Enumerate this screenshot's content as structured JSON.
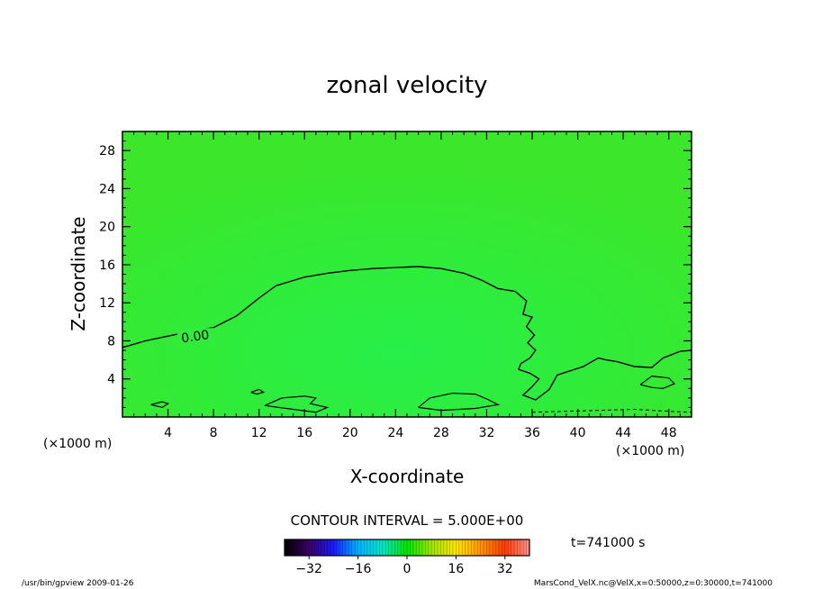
{
  "chart_data": {
    "type": "heatmap",
    "title": "zonal velocity",
    "xlabel": "X-coordinate",
    "ylabel": "Z-coordinate",
    "x_unit": "(×1000 m)",
    "y_unit": "(×1000 m)",
    "xlim": [
      0,
      50
    ],
    "ylim": [
      0,
      30
    ],
    "x_ticks": [
      "4",
      "8",
      "12",
      "16",
      "20",
      "24",
      "28",
      "32",
      "36",
      "40",
      "44",
      "48"
    ],
    "y_ticks": [
      "4",
      "8",
      "12",
      "16",
      "20",
      "24",
      "28"
    ],
    "grid": false,
    "contour_interval_text": "CONTOUR INTERVAL = 5.000E+00",
    "time_text": "t=741000 s",
    "colorbar": {
      "min": -40,
      "max": 40,
      "ticks": [
        "−32",
        "−16",
        "0",
        "16",
        "32"
      ],
      "colors": [
        "#000000",
        "#3a0066",
        "#1a1aff",
        "#00b4ff",
        "#00e6c8",
        "#00e600",
        "#a0e600",
        "#ffe600",
        "#ff9600",
        "#ff3c00",
        "#ff9090"
      ]
    },
    "field_color": "#33ee33",
    "contour_label": "0.00",
    "zero_contour": [
      [
        0,
        7.3
      ],
      [
        2,
        8.0
      ],
      [
        4,
        8.5
      ],
      [
        6,
        9.0
      ],
      [
        8,
        9.4
      ],
      [
        10,
        10.6
      ],
      [
        12,
        12.5
      ],
      [
        13.5,
        13.8
      ],
      [
        16,
        14.7
      ],
      [
        18,
        15.1
      ],
      [
        20,
        15.4
      ],
      [
        22,
        15.6
      ],
      [
        24,
        15.7
      ],
      [
        26,
        15.8
      ],
      [
        28,
        15.6
      ],
      [
        30,
        15.1
      ],
      [
        31.5,
        14.4
      ],
      [
        33,
        13.5
      ],
      [
        34.5,
        13.2
      ],
      [
        35.5,
        12.2
      ],
      [
        35.2,
        10.8
      ],
      [
        36,
        10.5
      ],
      [
        35.5,
        9.5
      ],
      [
        36.2,
        8.6
      ],
      [
        35.6,
        7.8
      ],
      [
        36.3,
        7.0
      ],
      [
        35.8,
        6.2
      ],
      [
        35,
        5.6
      ],
      [
        34.8,
        5.0
      ],
      [
        35.8,
        4.6
      ],
      [
        36.6,
        4.0
      ],
      [
        36.0,
        3.2
      ],
      [
        35.2,
        2.3
      ],
      [
        36.3,
        1.8
      ],
      [
        37.5,
        2.9
      ],
      [
        38.2,
        4.4
      ],
      [
        39.2,
        4.8
      ],
      [
        40.5,
        5.3
      ],
      [
        41.8,
        6.2
      ],
      [
        42.5,
        6.0
      ],
      [
        43.5,
        5.8
      ],
      [
        45,
        5.3
      ],
      [
        46.5,
        5.2
      ],
      [
        47.5,
        6.2
      ],
      [
        49,
        6.9
      ],
      [
        50,
        7.0
      ]
    ],
    "surface_contours": [
      [
        [
          12.5,
          1.2
        ],
        [
          14,
          2.0
        ],
        [
          16,
          2.2
        ],
        [
          17,
          2.0
        ],
        [
          16.5,
          1.4
        ],
        [
          18,
          1.0
        ],
        [
          17,
          0.5
        ],
        [
          15,
          0.8
        ],
        [
          12.5,
          1.2
        ]
      ],
      [
        [
          26,
          1.0
        ],
        [
          27,
          2.0
        ],
        [
          29,
          2.5
        ],
        [
          31,
          2.4
        ],
        [
          32,
          1.9
        ],
        [
          33,
          1.3
        ],
        [
          31,
          0.9
        ],
        [
          28,
          0.7
        ],
        [
          26,
          1.0
        ]
      ],
      [
        [
          2.5,
          1.3
        ],
        [
          3.5,
          1.6
        ],
        [
          4,
          1.4
        ],
        [
          3.5,
          1.0
        ],
        [
          2.5,
          1.3
        ]
      ],
      [
        [
          45.5,
          3.4
        ],
        [
          46.5,
          4.3
        ],
        [
          48,
          4.1
        ],
        [
          48.5,
          3.5
        ],
        [
          47.5,
          3.0
        ],
        [
          46.5,
          3.1
        ],
        [
          45.5,
          3.4
        ]
      ],
      [
        [
          11.3,
          2.6
        ],
        [
          12,
          2.9
        ],
        [
          12.4,
          2.6
        ],
        [
          11.8,
          2.4
        ],
        [
          11.3,
          2.6
        ]
      ]
    ],
    "dashed_contour": [
      [
        36,
        0.5
      ],
      [
        39,
        0.6
      ],
      [
        42,
        0.7
      ],
      [
        45,
        0.8
      ],
      [
        48,
        0.6
      ],
      [
        50,
        0.5
      ]
    ]
  },
  "footer": {
    "left": "/usr/bin/gpview   2009-01-26",
    "right": "MarsCond_VelX.nc@VelX,x=0:50000,z=0:30000,t=741000"
  }
}
